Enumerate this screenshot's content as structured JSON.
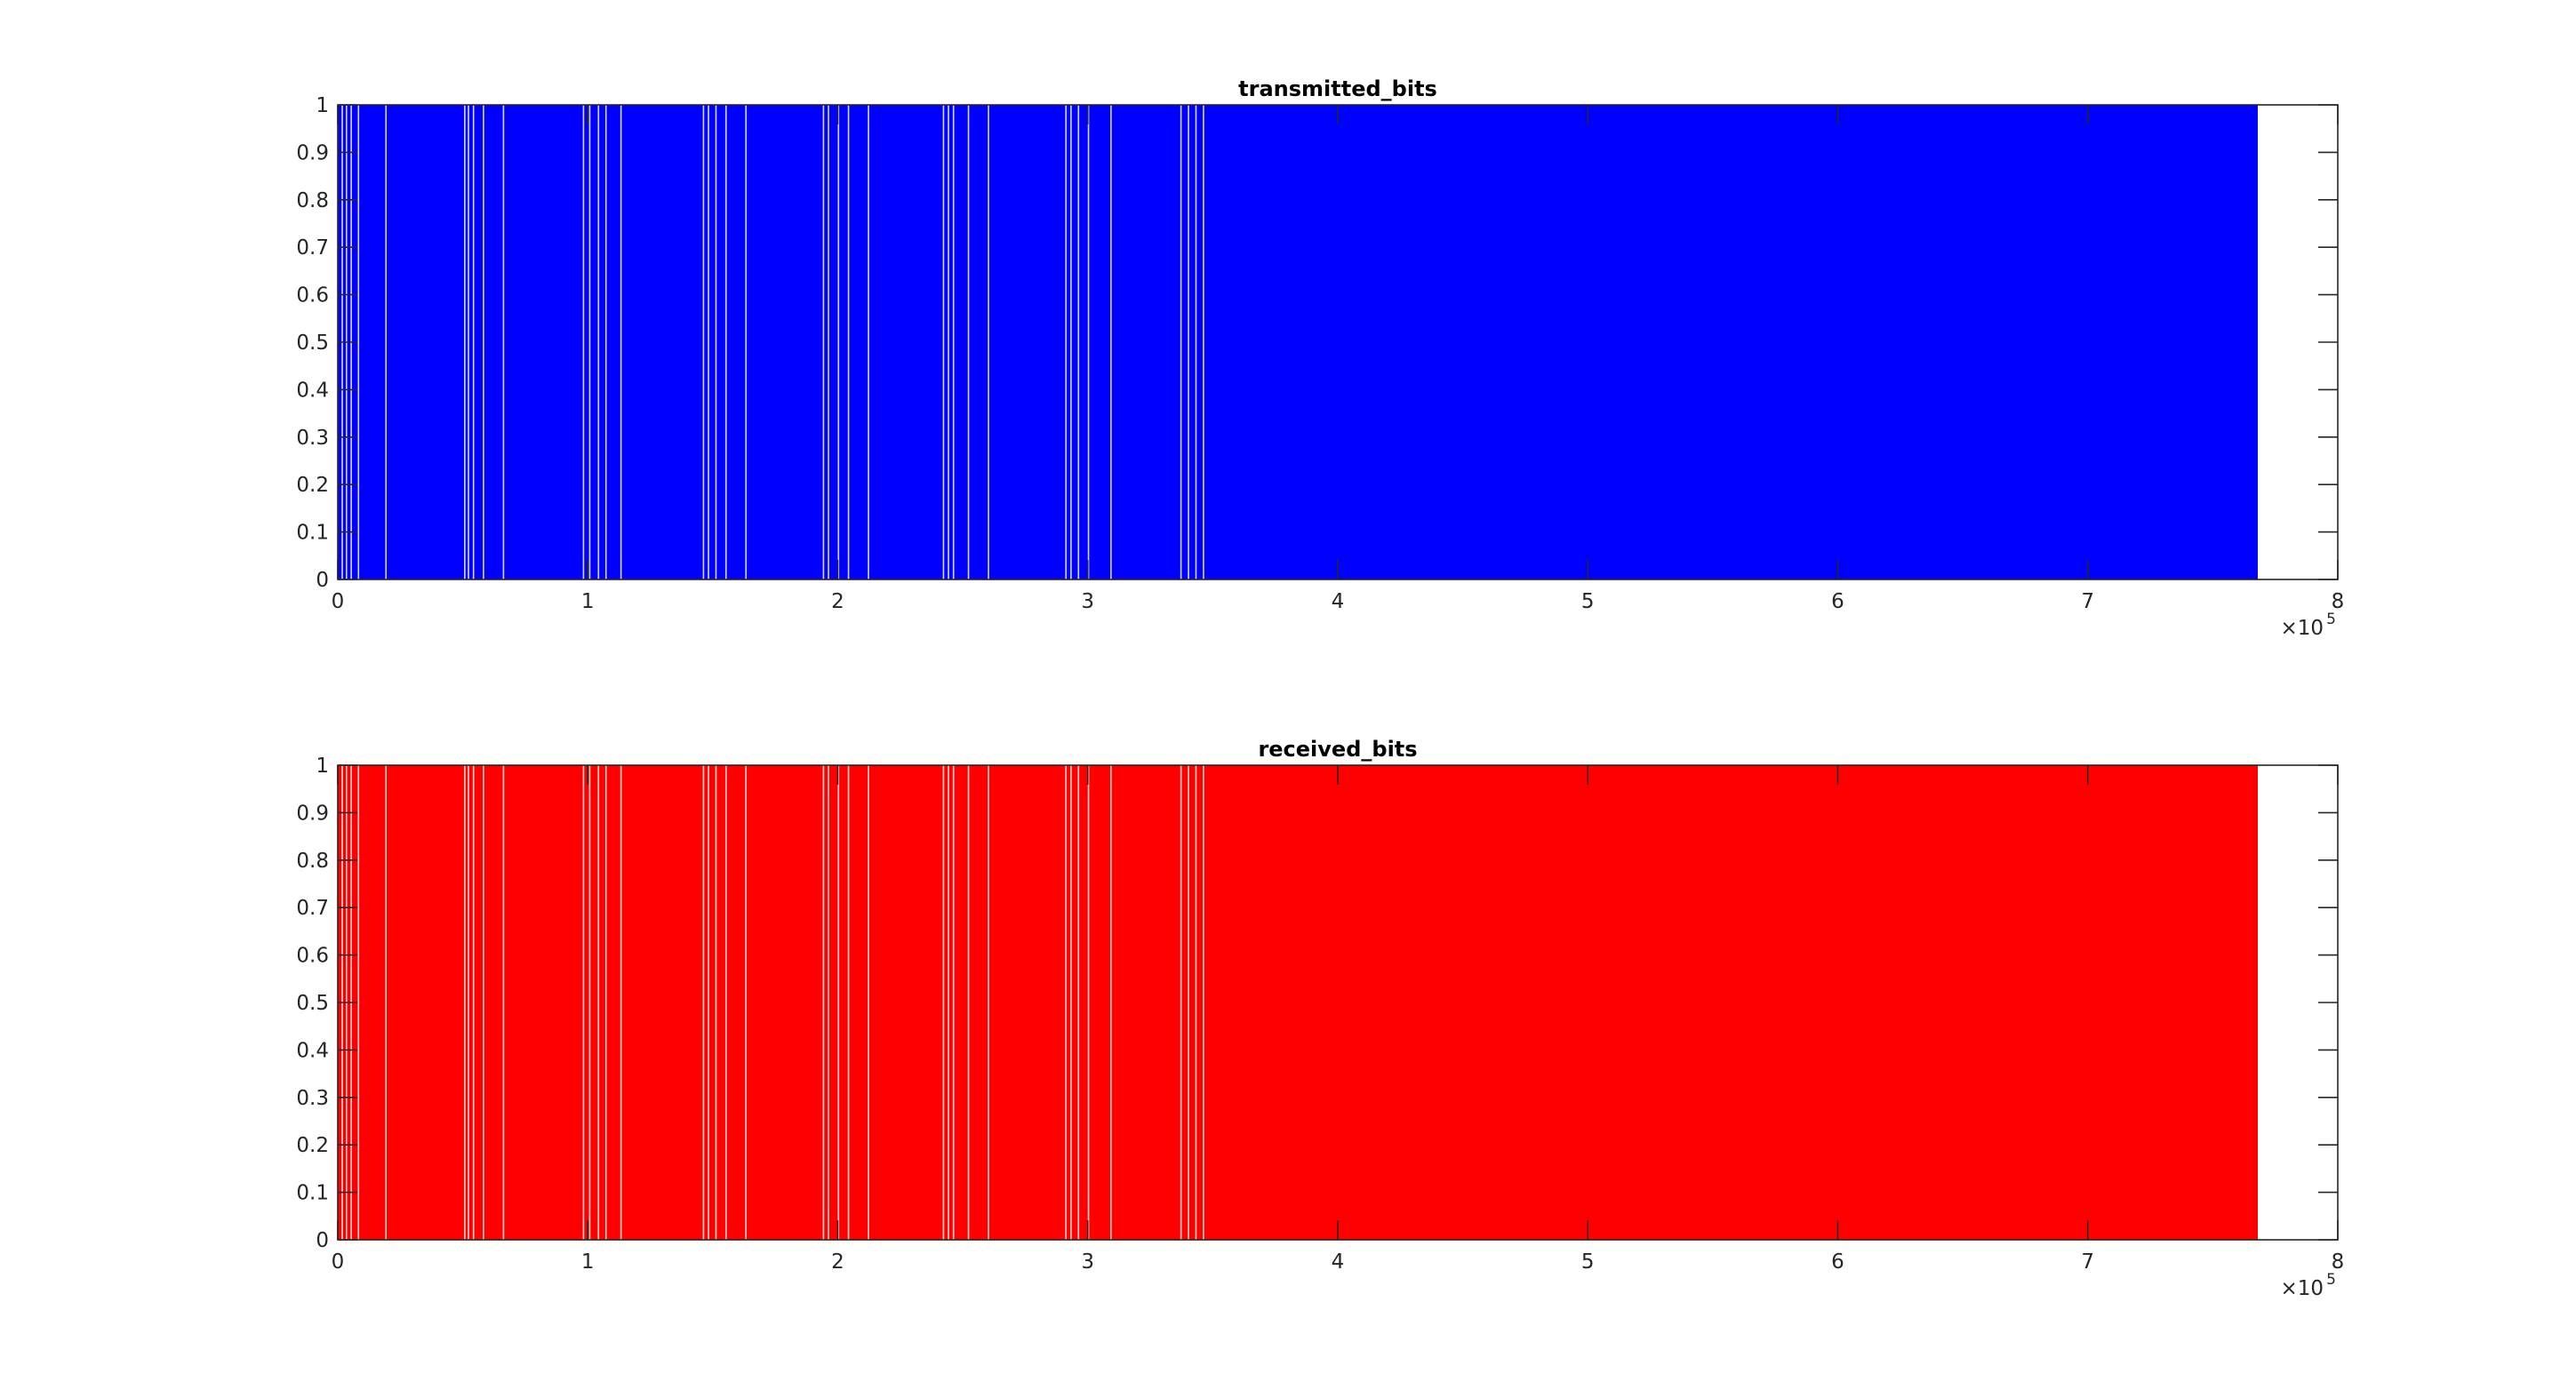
{
  "chart_data": [
    {
      "type": "area",
      "title": "transmitted_bits",
      "xlabel": "",
      "ylabel": "",
      "xlim": [
        0,
        800000
      ],
      "ylim": [
        0,
        1
      ],
      "x_ticks": [
        "0",
        "1",
        "2",
        "3",
        "4",
        "5",
        "6",
        "7",
        "8"
      ],
      "y_ticks": [
        "0",
        "0.1",
        "0.2",
        "0.3",
        "0.4",
        "0.5",
        "0.6",
        "0.7",
        "0.8",
        "0.9",
        "1"
      ],
      "x_exponent_base": "×10",
      "x_exponent_power": "5",
      "color": "#0000ff",
      "signal_extent": [
        0,
        768000
      ],
      "values": "binary sequence of 0s and 1s, densely alternating",
      "visible_gaps_x": [
        1500,
        3200,
        5100,
        8000,
        19000,
        50500,
        52000,
        54000,
        58000,
        66000,
        98000,
        100500,
        104000,
        107000,
        113000,
        146000,
        148000,
        151000,
        155000,
        163000,
        194000,
        196000,
        200000,
        204000,
        212000,
        242000,
        244000,
        246000,
        252000,
        260000,
        291000,
        293000,
        296000,
        300000,
        309000,
        337000,
        340000,
        343000,
        346000
      ],
      "grid": false
    },
    {
      "type": "area",
      "title": "received_bits",
      "xlabel": "",
      "ylabel": "",
      "xlim": [
        0,
        800000
      ],
      "ylim": [
        0,
        1
      ],
      "x_ticks": [
        "0",
        "1",
        "2",
        "3",
        "4",
        "5",
        "6",
        "7",
        "8"
      ],
      "y_ticks": [
        "0",
        "0.1",
        "0.2",
        "0.3",
        "0.4",
        "0.5",
        "0.6",
        "0.7",
        "0.8",
        "0.9",
        "1"
      ],
      "x_exponent_base": "×10",
      "x_exponent_power": "5",
      "color": "#ff0000",
      "signal_extent": [
        0,
        768000
      ],
      "values": "binary sequence of 0s and 1s, densely alternating",
      "visible_gaps_x": [
        1500,
        3200,
        5100,
        8000,
        19000,
        50500,
        52000,
        54000,
        58000,
        66000,
        98000,
        100500,
        104000,
        107000,
        113000,
        146000,
        148000,
        151000,
        155000,
        163000,
        194000,
        196000,
        200000,
        204000,
        212000,
        242000,
        244000,
        246000,
        252000,
        260000,
        291000,
        293000,
        296000,
        300000,
        309000,
        337000,
        340000,
        343000,
        346000
      ],
      "grid": false
    }
  ]
}
